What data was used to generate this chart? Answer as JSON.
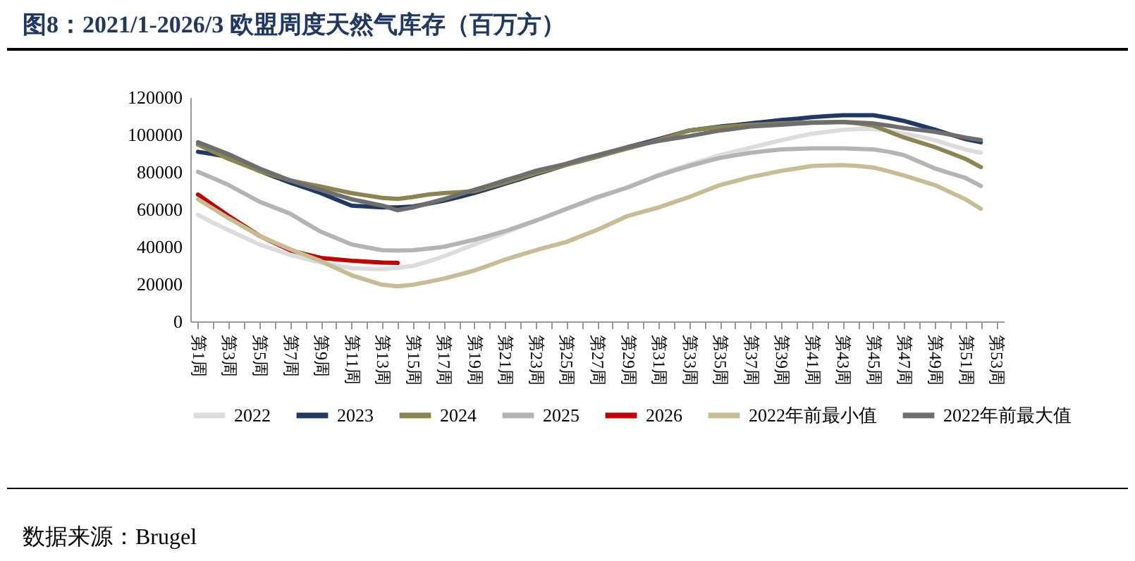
{
  "chart_data": {
    "type": "line",
    "title": "图8：2021/1-2026/3 欧盟周度天然气库存（百万方）",
    "annotations": [
      "数据来源：Brugel"
    ],
    "categories": [
      "第1周",
      null,
      "第3周",
      null,
      "第5周",
      null,
      "第7周",
      null,
      "第9周",
      null,
      "第11周",
      null,
      "第13周",
      null,
      "第15周",
      null,
      "第17周",
      null,
      "第19周",
      null,
      "第21周",
      null,
      "第23周",
      null,
      "第25周",
      null,
      "第27周",
      null,
      "第29周",
      null,
      "第31周",
      null,
      "第33周",
      null,
      "第35周",
      null,
      "第37周",
      null,
      "第39周",
      null,
      "第41周",
      null,
      "第43周",
      null,
      "第45周",
      null,
      "第47周",
      null,
      "第49周",
      null,
      "第51周",
      null,
      "第53周"
    ],
    "ylim": [
      0,
      120000
    ],
    "yticks": [
      0,
      20000,
      40000,
      60000,
      80000,
      100000,
      120000
    ],
    "legend": "bottom",
    "series": [
      {
        "name": "2022",
        "color": "#dcdcdc",
        "values": [
          57000,
          52800,
          48800,
          45000,
          41200,
          38400,
          35600,
          33500,
          31500,
          30000,
          28500,
          28200,
          28000,
          28700,
          29700,
          32000,
          34800,
          38000,
          41200,
          44300,
          47500,
          50700,
          53900,
          57000,
          60000,
          63000,
          66000,
          69000,
          72000,
          75200,
          78500,
          81300,
          84000,
          86500,
          89000,
          91000,
          93000,
          95000,
          97000,
          98800,
          100500,
          101500,
          102500,
          103000,
          103000,
          102000,
          100500,
          99000,
          97000,
          94500,
          92000,
          90300,
          null
        ]
      },
      {
        "name": "2023",
        "color": "#1f3864",
        "values": [
          90800,
          89500,
          88000,
          84300,
          80600,
          77400,
          74300,
          71500,
          68700,
          65300,
          62000,
          61500,
          61000,
          61000,
          61500,
          63000,
          64600,
          66600,
          68700,
          71200,
          73700,
          76200,
          78800,
          81300,
          83900,
          86000,
          88200,
          90700,
          93300,
          95400,
          97600,
          99900,
          102200,
          103200,
          104300,
          105100,
          106000,
          106900,
          107800,
          108500,
          109300,
          109900,
          110400,
          110400,
          110400,
          109000,
          107300,
          105000,
          102700,
          100100,
          97600,
          95900,
          null
        ]
      },
      {
        "name": "2024",
        "color": "#8c8450",
        "values": [
          94600,
          90800,
          87000,
          83800,
          80600,
          78000,
          75500,
          73800,
          72200,
          70400,
          68700,
          67400,
          66100,
          65600,
          66600,
          67900,
          68700,
          69200,
          69700,
          72000,
          74300,
          76800,
          79300,
          81600,
          83900,
          86000,
          88200,
          90400,
          92600,
          94800,
          97100,
          99600,
          102200,
          103100,
          104000,
          104600,
          105300,
          105600,
          106000,
          106300,
          106600,
          106700,
          106800,
          106000,
          104800,
          101600,
          98400,
          95900,
          93300,
          90200,
          87000,
          82600,
          null
        ]
      },
      {
        "name": "2025",
        "color": "#b4b4b4",
        "values": [
          80100,
          76600,
          73000,
          68500,
          64100,
          60900,
          57700,
          52800,
          48000,
          44600,
          41200,
          39600,
          38100,
          37900,
          38100,
          39000,
          39900,
          41800,
          43700,
          46000,
          48300,
          51100,
          53900,
          57100,
          60300,
          63400,
          66600,
          69100,
          71700,
          74900,
          78100,
          80700,
          83200,
          85400,
          87500,
          88900,
          90300,
          91200,
          92100,
          92400,
          92600,
          92600,
          92600,
          92400,
          92100,
          90800,
          89000,
          85500,
          81900,
          79300,
          76800,
          72500,
          null
        ]
      },
      {
        "name": "2026",
        "color": "#c00000",
        "values": [
          67900,
          62100,
          56400,
          51100,
          45800,
          41900,
          38100,
          36000,
          34000,
          33200,
          32500,
          32000,
          31500,
          31300,
          null,
          null,
          null,
          null,
          null,
          null,
          null,
          null,
          null,
          null,
          null,
          null,
          null,
          null,
          null,
          null,
          null,
          null,
          null,
          null,
          null,
          null,
          null,
          null,
          null,
          null,
          null,
          null,
          null,
          null,
          null,
          null,
          null,
          null,
          null,
          null,
          null,
          null,
          null
        ]
      },
      {
        "name": "2022年前最小值",
        "color": "#c8bc94",
        "values": [
          65400,
          60300,
          55200,
          50500,
          45800,
          42200,
          38700,
          35500,
          32300,
          28500,
          24700,
          22100,
          19600,
          18800,
          19600,
          21200,
          22900,
          25000,
          27200,
          30100,
          33100,
          35600,
          38100,
          40300,
          42500,
          45800,
          49000,
          52700,
          56500,
          58700,
          61000,
          63800,
          66600,
          69800,
          73000,
          75100,
          77300,
          78900,
          80600,
          81900,
          83200,
          83500,
          83700,
          83200,
          82400,
          80300,
          78100,
          75500,
          73000,
          69200,
          65400,
          60300,
          null
        ]
      },
      {
        "name": "2022年前最大值",
        "color": "#6e6e6e",
        "values": [
          95900,
          92700,
          89500,
          85700,
          81900,
          78700,
          75500,
          72900,
          70400,
          67900,
          65400,
          63700,
          62000,
          59500,
          61000,
          63200,
          65400,
          67900,
          70400,
          72900,
          75500,
          78000,
          80600,
          82500,
          84400,
          86900,
          89000,
          91200,
          93300,
          95000,
          96600,
          97900,
          99200,
          100700,
          102200,
          103200,
          104300,
          104800,
          105300,
          105800,
          106300,
          106500,
          106800,
          106400,
          106000,
          104800,
          103500,
          102500,
          101500,
          100000,
          98400,
          97100,
          null
        ]
      }
    ]
  }
}
